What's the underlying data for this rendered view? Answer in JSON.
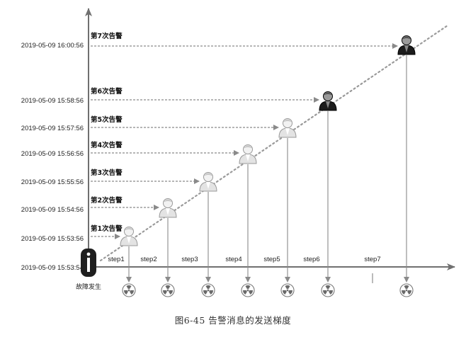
{
  "timestamps": [
    "2019-05-09 15:53:54",
    "2019-05-09 15:53:56",
    "2019-05-09 15:54:56",
    "2019-05-09 15:55:56",
    "2019-05-09 15:56:56",
    "2019-05-09 15:57:56",
    "2019-05-09 15:58:56",
    "2019-05-09 16:00:56"
  ],
  "alerts": [
    {
      "label": "第1次告警",
      "step": "step1"
    },
    {
      "label": "第2次告警",
      "step": "step2"
    },
    {
      "label": "第3次告警",
      "step": "step3"
    },
    {
      "label": "第4次告警",
      "step": "step4"
    },
    {
      "label": "第5次告警",
      "step": "step5"
    },
    {
      "label": "第6次告警",
      "step": "step6"
    },
    {
      "label": "第7次告警",
      "step": "step7"
    }
  ],
  "fault_label": "故障发生",
  "fault_icon": "info-icon",
  "recipient_icon": "person-icon",
  "source_icon": "radiation-icon",
  "caption": "图6-45  告警消息的发送梯度",
  "colors": {
    "axis": "#707070",
    "arrow": "#8a8a8a",
    "person_light": "#e3e3e3",
    "person_dark": "#1c1c1c"
  }
}
